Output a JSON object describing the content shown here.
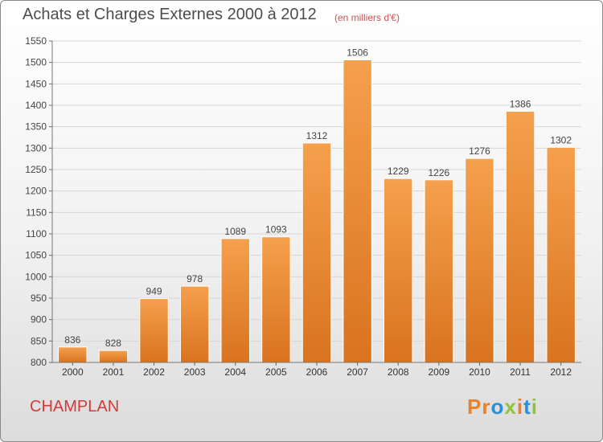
{
  "chart_data": {
    "type": "bar",
    "title": "Achats et Charges Externes 2000 à 2012",
    "subtitle": "(en milliers d'€)",
    "categories": [
      "2000",
      "2001",
      "2002",
      "2003",
      "2004",
      "2005",
      "2006",
      "2007",
      "2008",
      "2009",
      "2010",
      "2011",
      "2012"
    ],
    "values": [
      836,
      828,
      949,
      978,
      1089,
      1093,
      1312,
      1506,
      1229,
      1226,
      1276,
      1386,
      1302
    ],
    "ylim": [
      800,
      1550
    ],
    "yticks": [
      800,
      850,
      900,
      950,
      1000,
      1050,
      1100,
      1150,
      1200,
      1250,
      1300,
      1350,
      1400,
      1450,
      1500,
      1550
    ],
    "grid": true,
    "bar_color": "#f5a04d",
    "bar_color_dark": "#d9731f"
  },
  "footer": {
    "commune": "CHAMPLAN",
    "logo": "Proxiti",
    "logo_colors": [
      "#e8812a",
      "#e8812a",
      "#2a8fd6",
      "#8fc43a",
      "#e8812a",
      "#2a8fd6",
      "#8fc43a"
    ]
  }
}
